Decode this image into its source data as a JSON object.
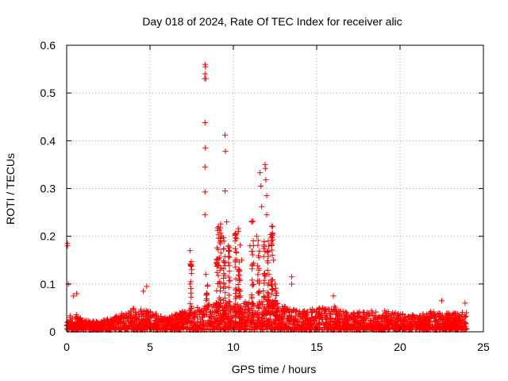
{
  "chart_data": {
    "type": "scatter",
    "title": "Day 018 of 2024, Rate Of TEC Index for receiver alic",
    "xlabel": "GPS time / hours",
    "ylabel": "ROTI / TECUs",
    "xlim": [
      0,
      25
    ],
    "ylim": [
      0,
      0.6
    ],
    "xticks": [
      0,
      5,
      10,
      15,
      20,
      25
    ],
    "yticks": [
      0,
      0.1,
      0.2,
      0.3,
      0.4,
      0.5,
      0.6
    ],
    "xtick_labels": [
      "0",
      "5",
      "10",
      "15",
      "20",
      "25"
    ],
    "ytick_labels": [
      "0",
      "0.1",
      "0.2",
      "0.3",
      "0.4",
      "0.5",
      "0.6"
    ],
    "grid": true,
    "marker": "+",
    "color": "#ff0000",
    "background_band": {
      "x_range": [
        0,
        24
      ],
      "baseline_envelope": [
        [
          0.0,
          0.03
        ],
        [
          0.5,
          0.035
        ],
        [
          1.0,
          0.02
        ],
        [
          2.0,
          0.018
        ],
        [
          3.0,
          0.03
        ],
        [
          4.0,
          0.045
        ],
        [
          5.0,
          0.04
        ],
        [
          6.0,
          0.025
        ],
        [
          7.0,
          0.04
        ],
        [
          8.0,
          0.05
        ],
        [
          9.0,
          0.06
        ],
        [
          10.0,
          0.055
        ],
        [
          11.0,
          0.06
        ],
        [
          12.0,
          0.065
        ],
        [
          13.0,
          0.05
        ],
        [
          14.0,
          0.04
        ],
        [
          15.0,
          0.045
        ],
        [
          16.0,
          0.05
        ],
        [
          17.0,
          0.035
        ],
        [
          18.0,
          0.04
        ],
        [
          19.0,
          0.04
        ],
        [
          20.0,
          0.035
        ],
        [
          21.0,
          0.03
        ],
        [
          22.0,
          0.04
        ],
        [
          23.0,
          0.035
        ],
        [
          24.0,
          0.04
        ]
      ]
    },
    "notable_points": [
      {
        "x": 0.05,
        "y": 0.18
      },
      {
        "x": 0.05,
        "y": 0.185
      },
      {
        "x": 0.1,
        "y": 0.1
      },
      {
        "x": 0.4,
        "y": 0.075
      },
      {
        "x": 0.6,
        "y": 0.08
      },
      {
        "x": 4.6,
        "y": 0.085
      },
      {
        "x": 4.8,
        "y": 0.095
      },
      {
        "x": 7.4,
        "y": 0.17
      },
      {
        "x": 7.5,
        "y": 0.13
      },
      {
        "x": 7.4,
        "y": 0.1
      },
      {
        "x": 8.3,
        "y": 0.56
      },
      {
        "x": 8.32,
        "y": 0.555
      },
      {
        "x": 8.3,
        "y": 0.54
      },
      {
        "x": 8.28,
        "y": 0.53
      },
      {
        "x": 8.35,
        "y": 0.53
      },
      {
        "x": 8.3,
        "y": 0.438
      },
      {
        "x": 8.32,
        "y": 0.385
      },
      {
        "x": 8.3,
        "y": 0.345
      },
      {
        "x": 8.3,
        "y": 0.293
      },
      {
        "x": 8.3,
        "y": 0.245
      },
      {
        "x": 8.35,
        "y": 0.12
      },
      {
        "x": 9.1,
        "y": 0.22
      },
      {
        "x": 9.3,
        "y": 0.2
      },
      {
        "x": 9.5,
        "y": 0.412
      },
      {
        "x": 9.52,
        "y": 0.378
      },
      {
        "x": 9.5,
        "y": 0.295
      },
      {
        "x": 9.6,
        "y": 0.23
      },
      {
        "x": 9.7,
        "y": 0.18
      },
      {
        "x": 10.1,
        "y": 0.19
      },
      {
        "x": 10.3,
        "y": 0.21
      },
      {
        "x": 10.5,
        "y": 0.15
      },
      {
        "x": 11.0,
        "y": 0.18
      },
      {
        "x": 11.1,
        "y": 0.23
      },
      {
        "x": 11.4,
        "y": 0.2
      },
      {
        "x": 11.6,
        "y": 0.333
      },
      {
        "x": 11.65,
        "y": 0.305
      },
      {
        "x": 11.7,
        "y": 0.262
      },
      {
        "x": 11.9,
        "y": 0.35
      },
      {
        "x": 11.92,
        "y": 0.342
      },
      {
        "x": 11.95,
        "y": 0.318
      },
      {
        "x": 12.0,
        "y": 0.285
      },
      {
        "x": 12.0,
        "y": 0.245
      },
      {
        "x": 12.3,
        "y": 0.221
      },
      {
        "x": 12.35,
        "y": 0.22
      },
      {
        "x": 12.3,
        "y": 0.19
      },
      {
        "x": 12.4,
        "y": 0.15
      },
      {
        "x": 12.5,
        "y": 0.1
      },
      {
        "x": 13.5,
        "y": 0.115
      },
      {
        "x": 13.5,
        "y": 0.1
      },
      {
        "x": 16.0,
        "y": 0.075
      },
      {
        "x": 22.5,
        "y": 0.065
      },
      {
        "x": 23.9,
        "y": 0.06
      }
    ],
    "spikes": [
      {
        "x": 9.05,
        "top": 0.225
      },
      {
        "x": 9.2,
        "top": 0.23
      },
      {
        "x": 9.45,
        "top": 0.2
      },
      {
        "x": 9.75,
        "top": 0.18
      },
      {
        "x": 10.15,
        "top": 0.21
      },
      {
        "x": 10.35,
        "top": 0.22
      },
      {
        "x": 11.15,
        "top": 0.235
      },
      {
        "x": 11.5,
        "top": 0.2
      },
      {
        "x": 11.85,
        "top": 0.19
      },
      {
        "x": 12.1,
        "top": 0.2
      },
      {
        "x": 12.3,
        "top": 0.22
      },
      {
        "x": 12.55,
        "top": 0.1
      },
      {
        "x": 7.45,
        "top": 0.15
      },
      {
        "x": 8.4,
        "top": 0.1
      }
    ]
  }
}
